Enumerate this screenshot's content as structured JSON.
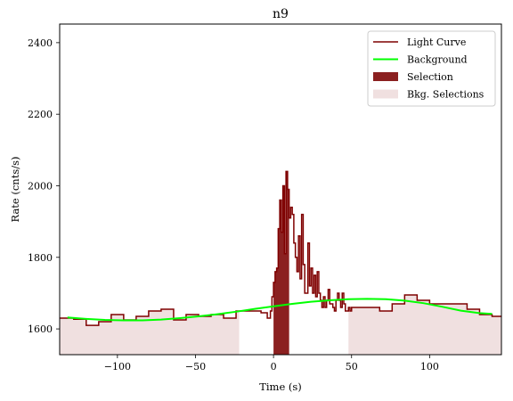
{
  "chart_data": {
    "type": "line",
    "title": "n9",
    "xlabel": "Time (s)",
    "ylabel": "Rate (cnts/s)",
    "xlim": [
      -137,
      146
    ],
    "ylim": [
      1528,
      2452
    ],
    "xticks": [
      -100,
      -50,
      0,
      50,
      100
    ],
    "xtick_labels": [
      "−100",
      "−50",
      "0",
      "50",
      "100"
    ],
    "yticks": [
      1600,
      1800,
      2000,
      2200,
      2400
    ],
    "ytick_labels": [
      "1600",
      "1800",
      "2000",
      "2200",
      "2400"
    ],
    "legend_position": "top-right",
    "grid": false,
    "colors": {
      "light_curve": "#7f0000",
      "background": "#00ff00",
      "selection": "#8b2020",
      "bkg_selection": "#f0e0e0"
    },
    "series": [
      {
        "name": "Light Curve",
        "style": "step",
        "x": [
          -137,
          -128,
          -120,
          -112,
          -104,
          -96,
          -88,
          -80,
          -72,
          -64,
          -56,
          -48,
          -40,
          -32,
          -24,
          -16,
          -8,
          -4,
          -2,
          -1,
          0,
          1,
          2,
          3,
          4,
          5,
          6,
          7,
          8,
          9,
          10,
          11,
          12,
          13,
          14,
          15,
          16,
          17,
          18,
          19,
          20,
          21,
          22,
          23,
          24,
          25,
          26,
          27,
          28,
          29,
          30,
          31,
          32,
          33,
          34,
          35,
          36,
          37,
          38,
          39,
          40,
          41,
          42,
          43,
          44,
          45,
          46,
          47,
          48,
          49,
          50,
          60,
          68,
          76,
          84,
          92,
          100,
          108,
          116,
          124,
          132,
          140,
          146
        ],
        "y": [
          1630,
          1627,
          1610,
          1620,
          1640,
          1625,
          1635,
          1650,
          1655,
          1625,
          1640,
          1635,
          1640,
          1630,
          1650,
          1650,
          1645,
          1630,
          1650,
          1690,
          1730,
          1760,
          1770,
          1880,
          1960,
          1870,
          2000,
          1810,
          2040,
          1990,
          1910,
          1940,
          1920,
          1840,
          1800,
          1760,
          1860,
          1740,
          1920,
          1780,
          1700,
          1700,
          1840,
          1720,
          1770,
          1700,
          1750,
          1690,
          1760,
          1700,
          1680,
          1660,
          1690,
          1660,
          1680,
          1710,
          1670,
          1670,
          1660,
          1650,
          1680,
          1700,
          1680,
          1660,
          1700,
          1670,
          1650,
          1650,
          1660,
          1650,
          1660,
          1660,
          1650,
          1670,
          1695,
          1680,
          1670,
          1670,
          1670,
          1655,
          1640,
          1635,
          1635
        ]
      },
      {
        "name": "Background",
        "style": "smooth",
        "x": [
          -132,
          -120,
          -108,
          -96,
          -84,
          -72,
          -60,
          -48,
          -36,
          -24,
          -12,
          0,
          12,
          24,
          36,
          48,
          60,
          72,
          84,
          96,
          108,
          120,
          132,
          140
        ],
        "y": [
          1632,
          1628,
          1625,
          1624,
          1624,
          1626,
          1630,
          1635,
          1641,
          1648,
          1656,
          1663,
          1670,
          1676,
          1680,
          1683,
          1684,
          1683,
          1679,
          1672,
          1662,
          1651,
          1644,
          1642
        ]
      }
    ],
    "selection": {
      "name": "Selection",
      "x_range": [
        0,
        10
      ]
    },
    "bkg_selections": {
      "name": "Bkg. Selections",
      "ranges": [
        [
          -137,
          -22
        ],
        [
          48,
          146
        ]
      ]
    }
  }
}
